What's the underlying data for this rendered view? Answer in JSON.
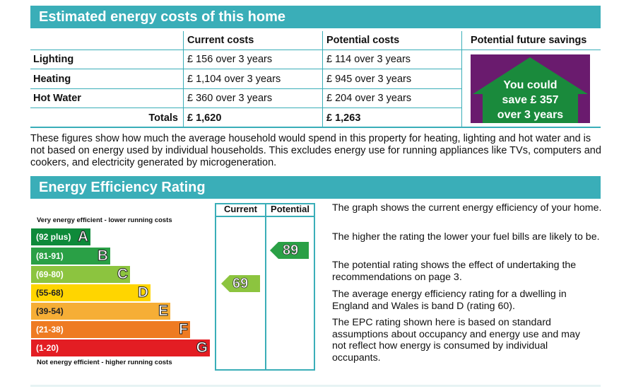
{
  "costs": {
    "heading": "Estimated energy costs of this home",
    "columns": {
      "current": "Current costs",
      "potential": "Potential costs",
      "savings": "Potential future savings"
    },
    "rows": [
      {
        "label": "Lighting",
        "current": "£ 156 over 3 years",
        "potential": "£ 114 over 3 years"
      },
      {
        "label": "Heating",
        "current": "£ 1,104 over 3 years",
        "potential": "£ 945 over 3 years"
      },
      {
        "label": "Hot Water",
        "current": "£ 360 over 3 years",
        "potential": "£ 204 over 3 years"
      }
    ],
    "totals": {
      "label": "Totals",
      "current": "£ 1,620",
      "potential": "£ 1,263"
    },
    "savings_box": {
      "line1": "You could",
      "line2": "save £ 357",
      "line3": "over 3 years",
      "color": "#6a1b6e",
      "arrow_color": "#1a8a3c"
    },
    "note": "These figures show how much the average household would spend in this property for heating, lighting and hot water and is not based on energy used by individual households. This excludes energy use for running appliances like TVs, computers and cookers, and electricity generated by microgeneration."
  },
  "rating": {
    "heading": "Energy Efficiency Rating",
    "top_caption": "Very energy efficient - lower running costs",
    "bottom_caption": "Not energy efficient - higher running costs",
    "column_current": "Current",
    "column_potential": "Potential",
    "bands": [
      {
        "range": "(92 plus)",
        "letter": "A",
        "color": "#0e8a3a"
      },
      {
        "range": "(81-91)",
        "letter": "B",
        "color": "#2aa046"
      },
      {
        "range": "(69-80)",
        "letter": "C",
        "color": "#8cc43f"
      },
      {
        "range": "(55-68)",
        "letter": "D",
        "color": "#ffd500"
      },
      {
        "range": "(39-54)",
        "letter": "E",
        "color": "#f6ae36"
      },
      {
        "range": "(21-38)",
        "letter": "F",
        "color": "#ee7b22"
      },
      {
        "range": "(1-20)",
        "letter": "G",
        "color": "#e31d23"
      }
    ],
    "current_value": "69",
    "current_color": "#8cc43f",
    "potential_value": "89",
    "potential_color": "#2aa046",
    "explanations": [
      "The graph shows the current energy efficiency of your home.",
      "The higher the rating the lower your fuel bills are likely to be.",
      "The potential rating shows the effect of undertaking the recommendations on page 3.",
      "The average energy efficiency rating for a dwelling in England and Wales is band D (rating 60).",
      "The EPC rating shown here is based on standard assumptions about occupancy and energy use and may not reflect how energy is consumed by individual occupants."
    ]
  }
}
